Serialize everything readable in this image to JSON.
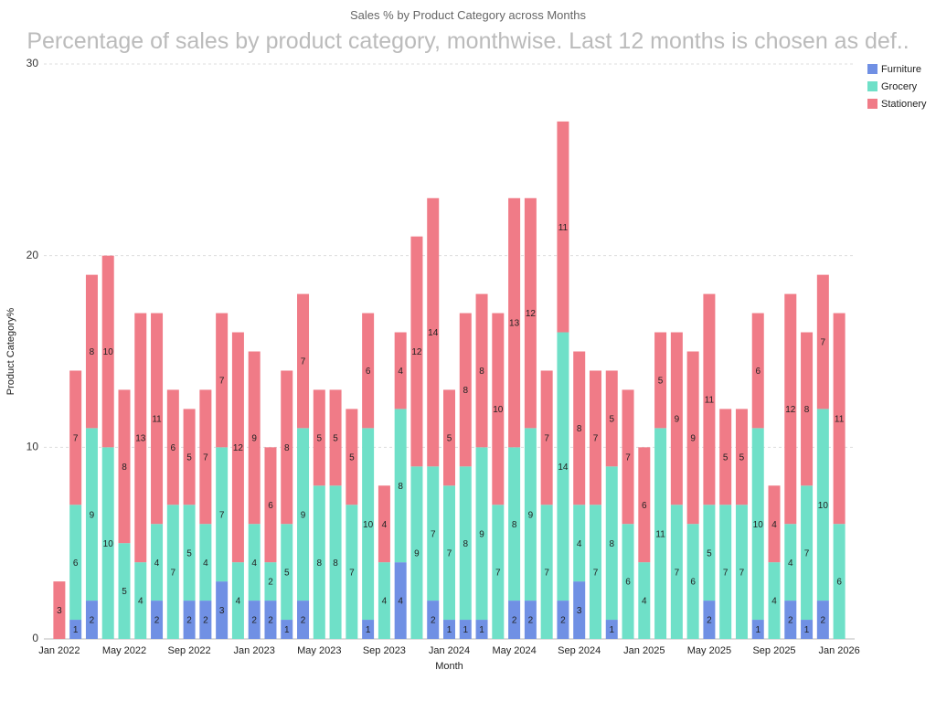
{
  "chart_data": {
    "type": "bar",
    "stacked": true,
    "title": "Sales % by Product Category across Months",
    "subtitle": "Percentage of sales by product category, monthwise. Last 12 months is chosen as def..",
    "x_label": "Month",
    "y_label": "Product Category%",
    "categories": [
      "Jan 2022",
      null,
      null,
      null,
      "May 2022",
      null,
      null,
      null,
      "Sep 2022",
      null,
      null,
      null,
      "Jan 2023",
      null,
      null,
      null,
      "May 2023",
      null,
      null,
      null,
      "Sep 2023",
      null,
      null,
      null,
      "Jan 2024",
      null,
      null,
      null,
      "May 2024",
      null,
      null,
      null,
      "Sep 2024",
      null,
      null,
      null,
      "Jan 2025",
      null,
      null,
      null,
      "May 2025",
      null,
      null,
      null,
      "Sep 2025",
      null,
      null,
      null,
      "Jan 2026"
    ],
    "series": [
      {
        "name": "Furniture",
        "color": "#7090e4",
        "values": [
          null,
          1,
          2,
          null,
          null,
          null,
          2,
          null,
          2,
          2,
          3,
          null,
          2,
          2,
          1,
          2,
          null,
          null,
          null,
          1,
          null,
          4,
          null,
          2,
          1,
          1,
          1,
          null,
          2,
          2,
          null,
          2,
          3,
          null,
          1,
          null,
          null,
          null,
          null,
          null,
          2,
          null,
          null,
          1,
          null,
          2,
          1,
          2,
          null
        ]
      },
      {
        "name": "Grocery",
        "color": "#6fe0c8",
        "values": [
          null,
          6,
          9,
          10,
          5,
          4,
          4,
          7,
          5,
          4,
          7,
          4,
          4,
          2,
          5,
          9,
          8,
          8,
          7,
          10,
          4,
          8,
          9,
          7,
          7,
          8,
          9,
          7,
          8,
          9,
          7,
          14,
          4,
          7,
          8,
          6,
          4,
          11,
          7,
          6,
          5,
          7,
          7,
          10,
          4,
          4,
          7,
          10,
          6
        ]
      },
      {
        "name": "Stationery",
        "color": "#f07b87",
        "values": [
          3,
          7,
          8,
          10,
          8,
          13,
          11,
          6,
          5,
          7,
          7,
          12,
          9,
          6,
          8,
          7,
          5,
          5,
          5,
          6,
          4,
          4,
          12,
          14,
          5,
          8,
          8,
          10,
          13,
          12,
          7,
          11,
          8,
          7,
          5,
          7,
          6,
          5,
          9,
          9,
          11,
          5,
          5,
          6,
          4,
          12,
          8,
          7,
          11
        ]
      }
    ],
    "ylim": [
      0,
      30
    ],
    "yticks": [
      0,
      10,
      20,
      30
    ],
    "grid": true,
    "legend": "top-right"
  }
}
